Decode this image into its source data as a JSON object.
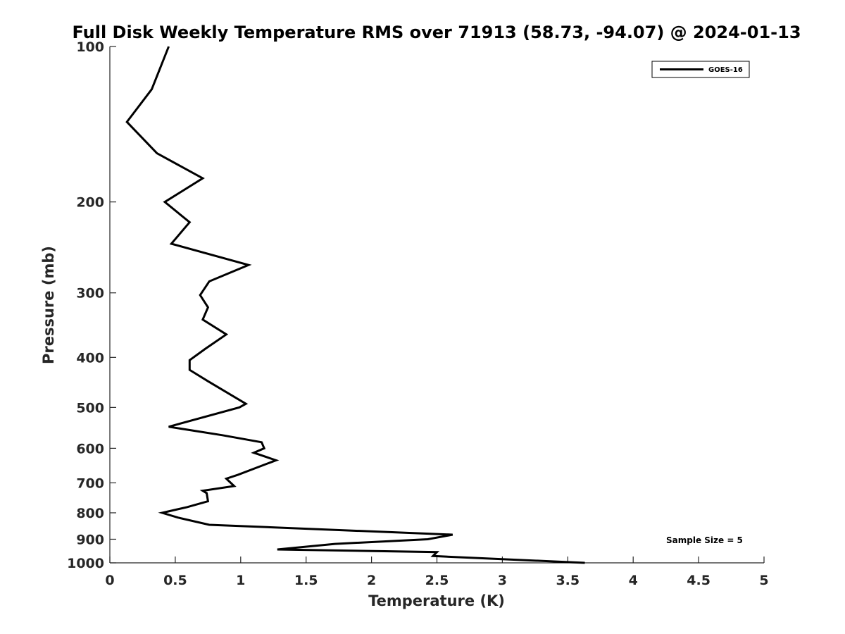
{
  "chart_data": {
    "type": "line",
    "title": "Full Disk Weekly Temperature RMS over 71913 (58.73, -94.07) @ 2024-01-13",
    "xlabel": "Temperature (K)",
    "ylabel": "Pressure (mb)",
    "xlim": [
      0,
      5
    ],
    "ylim": [
      100,
      1000
    ],
    "y_scale": "log",
    "y_reversed": true,
    "grid": false,
    "legend_position": "top-right",
    "x_ticks": [
      "0",
      "0.5",
      "1",
      "1.5",
      "2",
      "2.5",
      "3",
      "3.5",
      "4",
      "4.5",
      "5"
    ],
    "y_ticks": [
      "100",
      "200",
      "300",
      "400",
      "500",
      "600",
      "700",
      "800",
      "900",
      "1000"
    ],
    "series": [
      {
        "name": "GOES-16",
        "color": "#000000",
        "points": [
          [
            0.45,
            100
          ],
          [
            0.32,
            121
          ],
          [
            0.13,
            140
          ],
          [
            0.36,
            161
          ],
          [
            0.71,
            180
          ],
          [
            0.42,
            200
          ],
          [
            0.61,
            219
          ],
          [
            0.47,
            241
          ],
          [
            1.06,
            265
          ],
          [
            0.76,
            285
          ],
          [
            0.69,
            303
          ],
          [
            0.75,
            320
          ],
          [
            0.71,
            338
          ],
          [
            0.89,
            361
          ],
          [
            0.73,
            385
          ],
          [
            0.61,
            405
          ],
          [
            0.61,
            423
          ],
          [
            0.75,
            445
          ],
          [
            1.04,
            492
          ],
          [
            0.99,
            500
          ],
          [
            0.45,
            545
          ],
          [
            0.86,
            566
          ],
          [
            1.16,
            584
          ],
          [
            1.18,
            600
          ],
          [
            1.1,
            612
          ],
          [
            1.27,
            633
          ],
          [
            0.98,
            675
          ],
          [
            0.89,
            687
          ],
          [
            0.95,
            710
          ],
          [
            0.71,
            725
          ],
          [
            0.74,
            733
          ],
          [
            0.75,
            760
          ],
          [
            0.59,
            780
          ],
          [
            0.4,
            800
          ],
          [
            0.52,
            817
          ],
          [
            0.76,
            844
          ],
          [
            2.62,
            882
          ],
          [
            2.43,
            900
          ],
          [
            1.72,
            919
          ],
          [
            1.28,
            942
          ],
          [
            2.5,
            953
          ],
          [
            2.47,
            970
          ],
          [
            3.63,
            1000
          ]
        ]
      }
    ],
    "annotations": [
      "Sample Size = 5"
    ]
  }
}
